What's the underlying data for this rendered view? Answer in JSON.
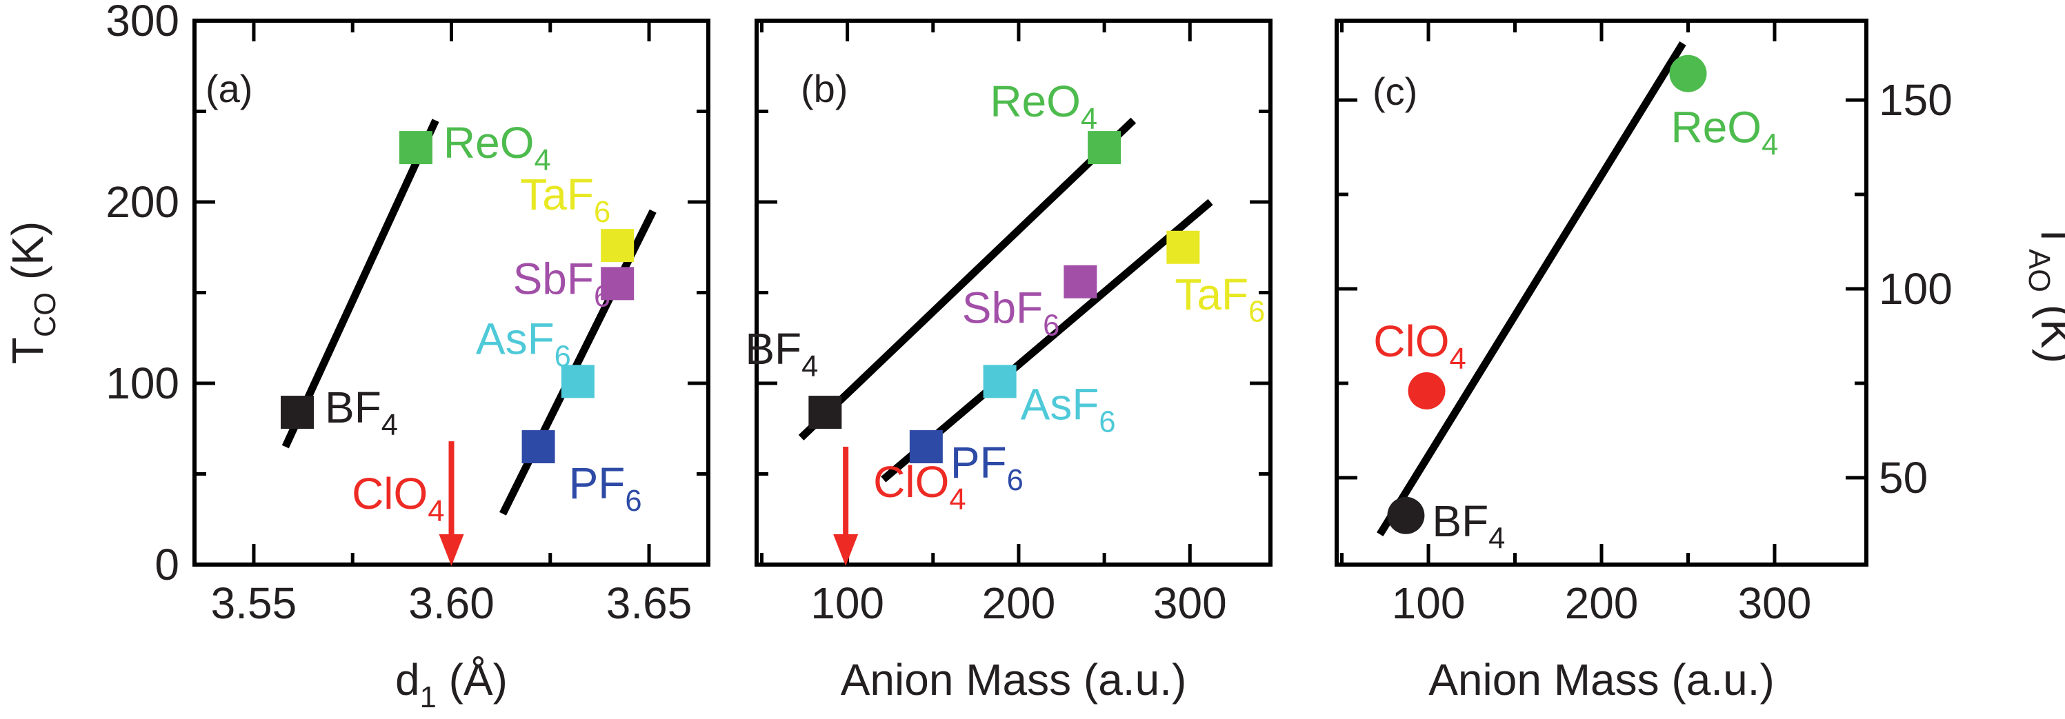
{
  "chart_data": [
    {
      "panel_label": "(a)",
      "type": "scatter",
      "xlabel_main": "d",
      "xlabel_sub": "1",
      "xlabel_rest": " (Å)",
      "ylabel_main": "T",
      "ylabel_sub": "CO",
      "ylabel_rest": " (K)",
      "xlim": [
        3.535,
        3.665
      ],
      "ylim": [
        0,
        300
      ],
      "xticks": [
        "3.55",
        "3.60",
        "3.65"
      ],
      "xtick_values": [
        3.55,
        3.6,
        3.65
      ],
      "xminor": [
        3.575,
        3.625
      ],
      "yticks": [
        "0",
        "100",
        "200",
        "300"
      ],
      "ytick_values": [
        0,
        100,
        200,
        300
      ],
      "yminor": [
        50,
        150,
        250
      ],
      "points": [
        {
          "name": "BF",
          "sub": "4",
          "x": 3.561,
          "y": 84,
          "color": "#231f20",
          "marker": "square"
        },
        {
          "name": "ReO",
          "sub": "4",
          "x": 3.591,
          "y": 230,
          "color": "#4dbb4d",
          "marker": "square"
        },
        {
          "name": "TaF",
          "sub": "6",
          "x": 3.642,
          "y": 176,
          "color": "#e8e824",
          "marker": "square"
        },
        {
          "name": "SbF",
          "sub": "6",
          "x": 3.642,
          "y": 155,
          "color": "#a24fa8",
          "marker": "square"
        },
        {
          "name": "AsF",
          "sub": "6",
          "x": 3.632,
          "y": 101,
          "color": "#4ec9d8",
          "marker": "square"
        },
        {
          "name": "PF",
          "sub": "6",
          "x": 3.622,
          "y": 65,
          "color": "#2d4aa6",
          "marker": "square"
        }
      ],
      "arrows": [
        {
          "name": "ClO",
          "sub": "4",
          "x": 3.6,
          "y_from": 68,
          "y_to": 0,
          "color": "#ee2a24"
        }
      ],
      "lines": [
        {
          "x": [
            3.558,
            3.596
          ],
          "y": [
            65,
            245
          ]
        },
        {
          "x": [
            3.613,
            3.651
          ],
          "y": [
            28,
            195
          ]
        }
      ]
    },
    {
      "panel_label": "(b)",
      "type": "scatter",
      "xlabel": "Anion Mass (a.u.)",
      "xlim": [
        47,
        347
      ],
      "ylim": [
        0,
        300
      ],
      "xticks": [
        "100",
        "200",
        "300"
      ],
      "xtick_values": [
        100,
        200,
        300
      ],
      "xminor": [
        50,
        150,
        250
      ],
      "ytick_values": [
        0,
        100,
        200,
        300
      ],
      "yminor": [
        50,
        150,
        250
      ],
      "points": [
        {
          "name": "BF",
          "sub": "4",
          "x": 87,
          "y": 84,
          "color": "#231f20",
          "marker": "square"
        },
        {
          "name": "ReO",
          "sub": "4",
          "x": 250,
          "y": 230,
          "color": "#4dbb4d",
          "marker": "square"
        },
        {
          "name": "TaF",
          "sub": "6",
          "x": 296,
          "y": 175,
          "color": "#e8e824",
          "marker": "square"
        },
        {
          "name": "SbF",
          "sub": "6",
          "x": 236,
          "y": 156,
          "color": "#a24fa8",
          "marker": "square"
        },
        {
          "name": "AsF",
          "sub": "6",
          "x": 189,
          "y": 101,
          "color": "#4ec9d8",
          "marker": "square"
        },
        {
          "name": "PF",
          "sub": "6",
          "x": 146,
          "y": 65,
          "color": "#2d4aa6",
          "marker": "square"
        }
      ],
      "arrows": [
        {
          "name": "ClO",
          "sub": "4",
          "x": 99,
          "y_from": 65,
          "y_to": 0,
          "color": "#ee2a24"
        }
      ],
      "lines": [
        {
          "x": [
            73,
            267
          ],
          "y": [
            70,
            245
          ]
        },
        {
          "x": [
            121,
            312
          ],
          "y": [
            47,
            200
          ]
        }
      ]
    },
    {
      "panel_label": "(c)",
      "type": "scatter",
      "xlabel": "Anion Mass (a.u.)",
      "ylabel_main": "T",
      "ylabel_sub": "AO",
      "ylabel_rest": " (K)",
      "xlim": [
        47,
        353
      ],
      "ylim": [
        27,
        171
      ],
      "xticks": [
        "100",
        "200",
        "300"
      ],
      "xtick_values": [
        100,
        200,
        300
      ],
      "xminor": [
        50,
        150,
        250
      ],
      "yticks": [
        "50",
        "100",
        "150"
      ],
      "ytick_values": [
        50,
        100,
        150
      ],
      "yminor": [
        75,
        125
      ],
      "points": [
        {
          "name": "BF",
          "sub": "4",
          "x": 87,
          "y": 40,
          "color": "#231f20",
          "marker": "circle"
        },
        {
          "name": "ClO",
          "sub": "4",
          "x": 99,
          "y": 73,
          "color": "#ee2a24",
          "marker": "circle"
        },
        {
          "name": "ReO",
          "sub": "4",
          "x": 250,
          "y": 157,
          "color": "#4dbb4d",
          "marker": "circle"
        }
      ],
      "lines": [
        {
          "x": [
            72,
            247
          ],
          "y": [
            35,
            165
          ]
        }
      ]
    }
  ]
}
